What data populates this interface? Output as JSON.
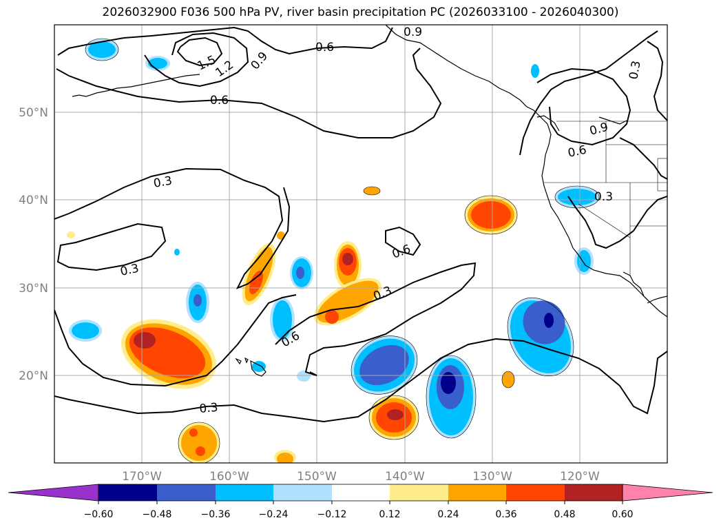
{
  "title": "2026032900 F036 500 hPa PV, river basin precipitation PC (2026033100 - 2026040300)",
  "map": {
    "lon_ticks": [
      "170°W",
      "160°W",
      "150°W",
      "140°W",
      "130°W",
      "120°W"
    ],
    "lat_ticks": [
      "50°N",
      "40°N",
      "30°N",
      "20°N"
    ],
    "contour_labels": [
      "0.9",
      "0.6",
      "1.5",
      "1.2",
      "0.9",
      "0.6",
      "0.3",
      "0.9",
      "0.6",
      "0.3",
      "0.3",
      "0.6",
      "0.3",
      "0.6",
      "0.3",
      "0.3"
    ]
  },
  "colorbar": {
    "labels": [
      "−0.60",
      "−0.48",
      "−0.36",
      "−0.24",
      "−0.12",
      "0.12",
      "0.24",
      "0.36",
      "0.48",
      "0.60"
    ],
    "colors": [
      "#9932cc",
      "#00008b",
      "#3a5fcd",
      "#00bfff",
      "#b0e2ff",
      "#ffffff",
      "#ffec8b",
      "#ffa500",
      "#ff4500",
      "#b22222",
      "#ff82ab"
    ]
  },
  "field_colors": {
    "pos1": "#ffec8b",
    "pos2": "#ffa500",
    "pos3": "#ff4500",
    "pos4": "#b22222",
    "neg1": "#b0e2ff",
    "neg2": "#00bfff",
    "neg3": "#3a5fcd",
    "neg4": "#00008b"
  }
}
